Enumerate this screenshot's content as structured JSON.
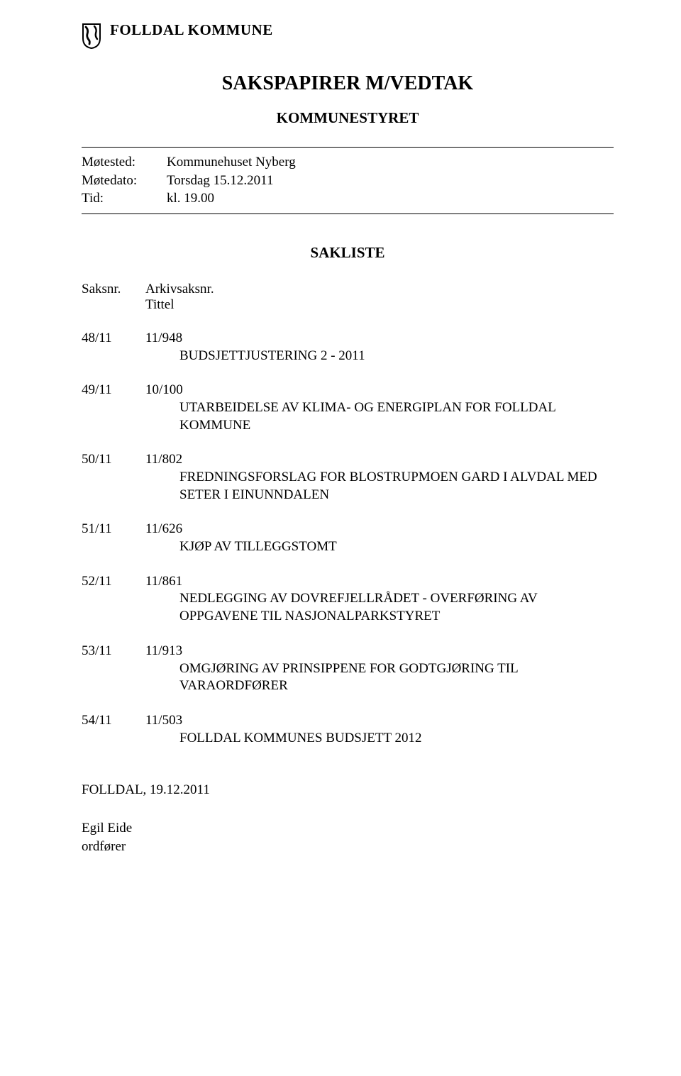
{
  "header": {
    "org_name": "FOLLDAL KOMMUNE"
  },
  "title": "SAKSPAPIRER M/VEDTAK",
  "subtitle": "KOMMUNESTYRET",
  "meeting": {
    "place_label": "Møtested:",
    "place_value": "Kommunehuset Nyberg",
    "date_label": "Møtedato:",
    "date_value": "Torsdag 15.12.2011",
    "time_label": "Tid:",
    "time_value": "kl. 19.00"
  },
  "agenda_heading": "SAKLISTE",
  "columns": {
    "case_no": "Saksnr.",
    "archive_no": "Arkivsaksnr.",
    "title": "Tittel"
  },
  "items": [
    {
      "case_no": "48/11",
      "archive_no": "11/948",
      "title": "BUDSJETTJUSTERING 2 - 2011"
    },
    {
      "case_no": "49/11",
      "archive_no": "10/100",
      "title": "UTARBEIDELSE AV KLIMA- OG ENERGIPLAN FOR FOLLDAL KOMMUNE"
    },
    {
      "case_no": "50/11",
      "archive_no": "11/802",
      "title": "FREDNINGSFORSLAG FOR BLOSTRUPMOEN GARD I ALVDAL MED SETER I EINUNNDALEN"
    },
    {
      "case_no": "51/11",
      "archive_no": "11/626",
      "title": "KJØP AV TILLEGGSTOMT"
    },
    {
      "case_no": "52/11",
      "archive_no": "11/861",
      "title": "NEDLEGGING AV DOVREFJELLRÅDET - OVERFØRING AV OPPGAVENE TIL NASJONALPARKSTYRET"
    },
    {
      "case_no": "53/11",
      "archive_no": "11/913",
      "title": "OMGJØRING AV PRINSIPPENE FOR GODTGJØRING TIL VARAORDFØRER"
    },
    {
      "case_no": "54/11",
      "archive_no": "11/503",
      "title": "FOLLDAL KOMMUNES BUDSJETT 2012"
    }
  ],
  "footer": {
    "place_date": "FOLLDAL, 19.12.2011",
    "sign_name": "Egil Eide",
    "sign_role": "ordfører"
  },
  "colors": {
    "text": "#000000",
    "background": "#ffffff",
    "shield_fill": "#ffffff",
    "shield_stroke": "#000000"
  }
}
